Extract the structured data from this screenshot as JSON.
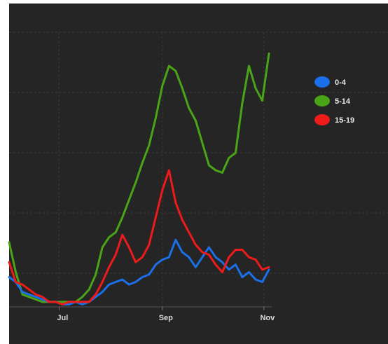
{
  "chart_data": {
    "type": "line",
    "title": "",
    "xlabel": "",
    "ylabel": "",
    "x_ticks": [
      "Jul",
      "Sep",
      "Nov"
    ],
    "grid": true,
    "legend_position": "right",
    "x": [
      "2020-06-01",
      "2020-06-05",
      "2020-06-09",
      "2020-06-13",
      "2020-06-17",
      "2020-06-21",
      "2020-06-25",
      "2020-06-29",
      "2020-07-03",
      "2020-07-07",
      "2020-07-11",
      "2020-07-15",
      "2020-07-19",
      "2020-07-23",
      "2020-07-27",
      "2020-07-31",
      "2020-08-04",
      "2020-08-08",
      "2020-08-12",
      "2020-08-16",
      "2020-08-20",
      "2020-08-24",
      "2020-08-28",
      "2020-09-01",
      "2020-09-05",
      "2020-09-09",
      "2020-09-13",
      "2020-09-17",
      "2020-09-21",
      "2020-09-25",
      "2020-09-29",
      "2020-10-03",
      "2020-10-07",
      "2020-10-11",
      "2020-10-15",
      "2020-10-19",
      "2020-10-23",
      "2020-10-27",
      "2020-10-31",
      "2020-11-04"
    ],
    "series": [
      {
        "name": "0-4",
        "color": "#1b6fe8",
        "values": [
          12,
          10,
          6,
          5,
          4,
          3,
          2,
          2,
          1,
          1,
          2,
          1,
          2,
          4,
          6,
          9,
          10,
          11,
          9,
          10,
          12,
          13,
          17,
          19,
          20,
          27,
          22,
          20,
          16,
          20,
          24,
          20,
          18,
          15,
          17,
          12,
          14,
          11,
          10,
          15
        ]
      },
      {
        "name": "5-14",
        "color": "#4aa516",
        "values": [
          26,
          14,
          5,
          4,
          3,
          2,
          2,
          2,
          2,
          2,
          2,
          4,
          7,
          13,
          24,
          28,
          30,
          36,
          43,
          50,
          58,
          65,
          76,
          89,
          97,
          95,
          88,
          80,
          75,
          66,
          57,
          55,
          54,
          60,
          62,
          82,
          97,
          88,
          83,
          102
        ]
      },
      {
        "name": "15-19",
        "color": "#ef1a1a",
        "values": [
          18,
          10,
          9,
          7,
          5,
          4,
          2,
          2,
          1,
          2,
          2,
          2,
          2,
          5,
          10,
          16,
          21,
          29,
          24,
          18,
          20,
          25,
          36,
          47,
          55,
          42,
          35,
          30,
          25,
          22,
          21,
          17,
          14,
          20,
          23,
          23,
          20,
          19,
          15,
          16
        ]
      }
    ],
    "ylim": [
      0,
      110
    ]
  }
}
